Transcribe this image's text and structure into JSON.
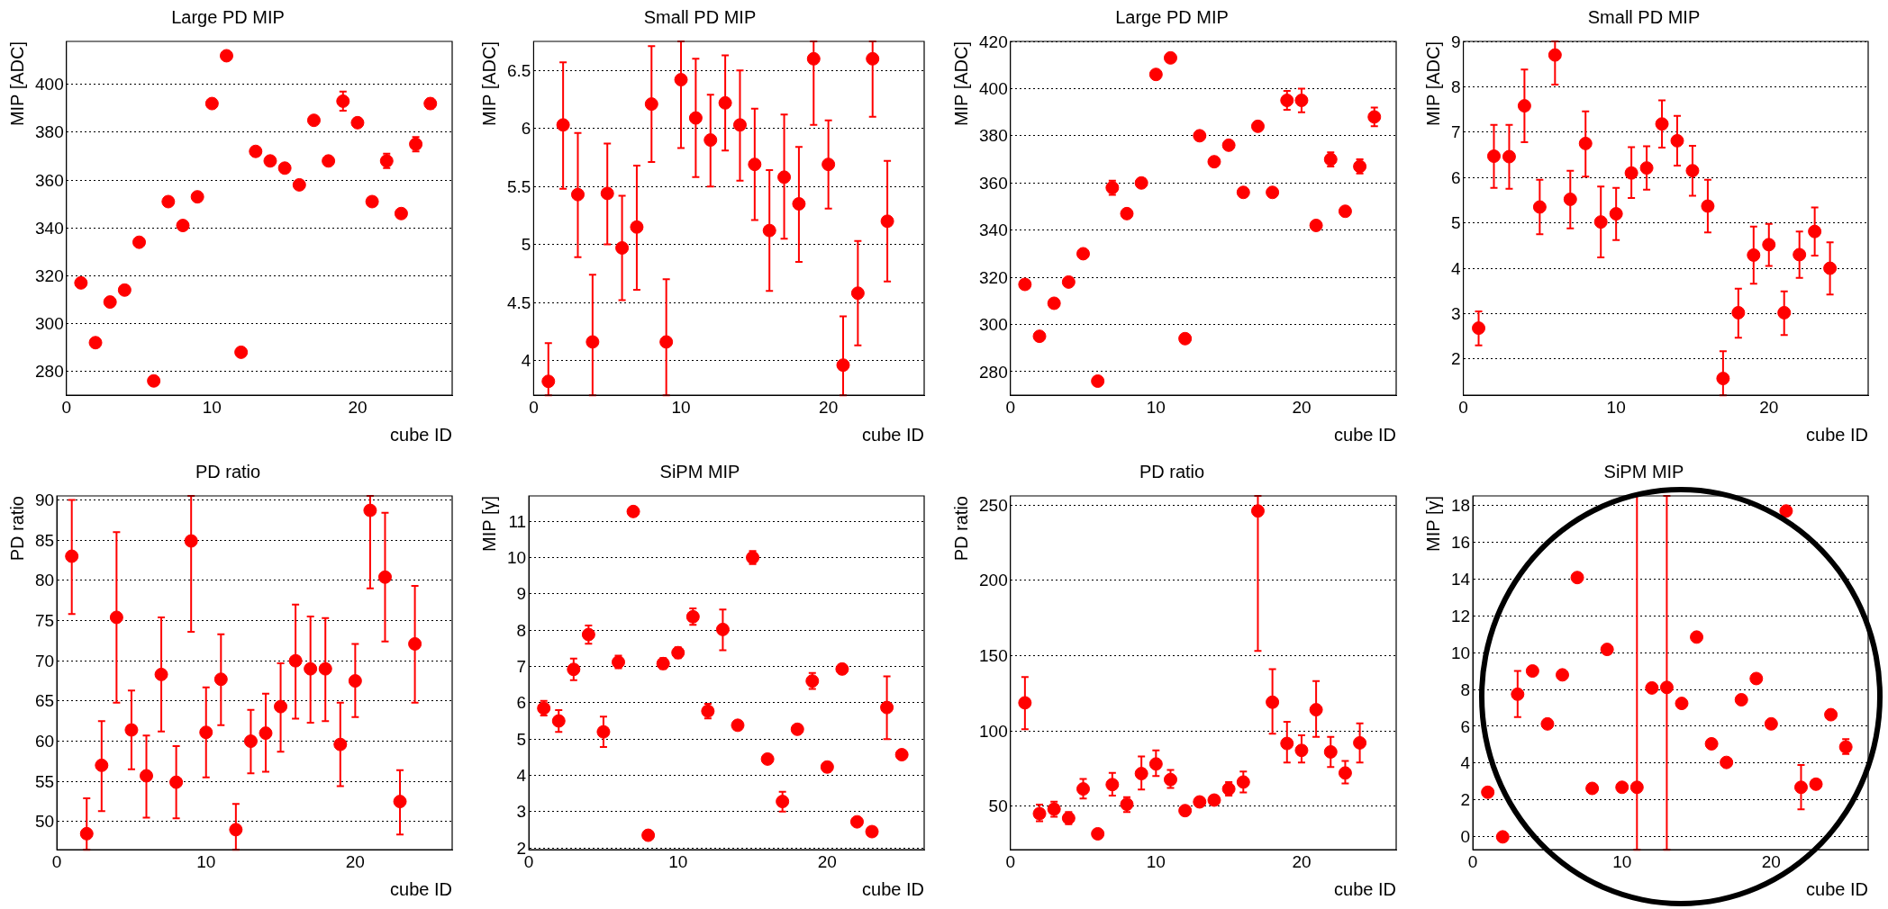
{
  "chart_data": [
    {
      "type": "scatter",
      "title": "Large PD MIP",
      "xlabel": "cube ID",
      "ylabel": "MIP [ADC]",
      "color": "#ff0000",
      "marker": "circle",
      "grid": "y",
      "xlim": [
        0,
        26.5
      ],
      "xticks": [
        0,
        10,
        20
      ],
      "ylim": [
        270,
        418
      ],
      "yticks": [
        280,
        300,
        320,
        340,
        360,
        380,
        400
      ],
      "x": [
        1,
        2,
        3,
        4,
        5,
        6,
        7,
        8,
        9,
        10,
        11,
        12,
        13,
        14,
        15,
        16,
        17,
        18,
        19,
        20,
        21,
        22,
        23,
        24,
        25
      ],
      "values": [
        317,
        292,
        309,
        314,
        334,
        276,
        351,
        341,
        353,
        392,
        412,
        288,
        372,
        368,
        365,
        358,
        385,
        368,
        393,
        384,
        351,
        368,
        346,
        375,
        392
      ],
      "errors": [
        null,
        null,
        null,
        null,
        null,
        null,
        null,
        null,
        null,
        null,
        null,
        null,
        null,
        null,
        null,
        null,
        null,
        null,
        4,
        null,
        null,
        3,
        null,
        3,
        2
      ]
    },
    {
      "type": "scatter",
      "title": "Small PD MIP",
      "xlabel": "cube ID",
      "ylabel": "MIP [ADC]",
      "color": "#ff0000",
      "marker": "circle",
      "grid": "y",
      "xlim": [
        0,
        26.5
      ],
      "xticks": [
        0,
        10,
        20
      ],
      "ylim": [
        3.7,
        6.75
      ],
      "yticks": [
        4,
        4.5,
        5,
        5.5,
        6,
        6.5
      ],
      "x": [
        1,
        2,
        3,
        4,
        5,
        6,
        7,
        8,
        9,
        10,
        11,
        12,
        13,
        14,
        15,
        16,
        17,
        18,
        19,
        20,
        21,
        22,
        23,
        24
      ],
      "values": [
        3.82,
        6.03,
        5.43,
        4.16,
        5.44,
        4.97,
        5.15,
        6.21,
        4.16,
        6.42,
        6.09,
        5.9,
        6.22,
        6.03,
        5.69,
        5.12,
        5.58,
        5.35,
        6.6,
        5.69,
        3.96,
        4.58,
        6.6,
        5.2
      ],
      "errors": [
        [
          3.7,
          4.15
        ],
        [
          5.48,
          6.57
        ],
        [
          4.89,
          5.96
        ],
        [
          3.7,
          4.74
        ],
        [
          5.0,
          5.87
        ],
        [
          4.52,
          5.42
        ],
        [
          4.61,
          5.68
        ],
        [
          5.71,
          6.71
        ],
        [
          3.7,
          4.7
        ],
        [
          5.83,
          6.75
        ],
        [
          5.58,
          6.6
        ],
        [
          5.5,
          6.29
        ],
        [
          5.81,
          6.63
        ],
        [
          5.55,
          6.5
        ],
        [
          5.21,
          6.17
        ],
        [
          4.6,
          5.64
        ],
        [
          5.05,
          6.12
        ],
        [
          4.85,
          5.84
        ],
        [
          6.03,
          6.75
        ],
        [
          5.31,
          6.07
        ],
        [
          3.7,
          4.38
        ],
        [
          4.13,
          5.03
        ],
        [
          6.1,
          6.75
        ],
        [
          4.68,
          5.72
        ]
      ]
    },
    {
      "type": "scatter",
      "title": "Large PD MIP",
      "xlabel": "cube ID",
      "ylabel": "MIP [ADC]",
      "color": "#ff0000",
      "marker": "circle",
      "grid": "y",
      "xlim": [
        0,
        26.5
      ],
      "xticks": [
        0,
        10,
        20
      ],
      "ylim": [
        270,
        420
      ],
      "yticks": [
        280,
        300,
        320,
        340,
        360,
        380,
        400,
        420
      ],
      "x": [
        1,
        2,
        3,
        4,
        5,
        6,
        7,
        8,
        9,
        10,
        11,
        12,
        13,
        14,
        15,
        16,
        17,
        18,
        19,
        20,
        21,
        22,
        23,
        24,
        25
      ],
      "values": [
        317,
        295,
        309,
        318,
        330,
        276,
        358,
        347,
        360,
        406,
        413,
        294,
        380,
        369,
        376,
        356,
        384,
        356,
        395,
        395,
        342,
        370,
        348,
        367,
        388
      ],
      "errors": [
        null,
        null,
        null,
        null,
        null,
        null,
        3,
        null,
        null,
        null,
        null,
        null,
        null,
        null,
        null,
        null,
        null,
        null,
        [
          391,
          399
        ],
        [
          390,
          400
        ],
        null,
        3,
        null,
        3,
        [
          384,
          392
        ]
      ]
    },
    {
      "type": "scatter",
      "title": "Small PD MIP",
      "xlabel": "cube ID",
      "ylabel": "MIP [ADC]",
      "color": "#ff0000",
      "marker": "circle",
      "grid": "y",
      "xlim": [
        0,
        26.5
      ],
      "xticks": [
        0,
        10,
        20
      ],
      "ylim": [
        1.2,
        9
      ],
      "yticks": [
        2,
        3,
        4,
        5,
        6,
        7,
        8,
        9
      ],
      "x": [
        1,
        2,
        3,
        4,
        5,
        6,
        7,
        8,
        9,
        10,
        11,
        12,
        13,
        14,
        15,
        16,
        17,
        18,
        19,
        20,
        21,
        22,
        23,
        24
      ],
      "values": [
        2.68,
        6.47,
        6.46,
        7.58,
        5.35,
        8.7,
        5.52,
        6.75,
        5.02,
        5.2,
        6.1,
        6.21,
        7.18,
        6.81,
        6.15,
        5.37,
        1.57,
        3.02,
        4.29,
        4.52,
        3.02,
        4.3,
        4.81,
        4.0
      ],
      "errors": [
        [
          2.3,
          3.05
        ],
        [
          5.77,
          7.16
        ],
        [
          5.75,
          7.16
        ],
        [
          6.78,
          8.38
        ],
        [
          4.75,
          5.95
        ],
        [
          8.05,
          9.0
        ],
        [
          4.88,
          6.15
        ],
        [
          6.02,
          7.46
        ],
        [
          4.24,
          5.8
        ],
        [
          4.62,
          5.77
        ],
        [
          5.55,
          6.67
        ],
        [
          5.73,
          6.69
        ],
        [
          6.66,
          7.7
        ],
        [
          6.26,
          7.36
        ],
        [
          5.6,
          6.7
        ],
        [
          4.79,
          5.95
        ],
        [
          1.2,
          2.17
        ],
        [
          2.47,
          3.55
        ],
        [
          3.66,
          4.92
        ],
        [
          4.05,
          4.98
        ],
        [
          2.53,
          3.49
        ],
        [
          3.79,
          4.81
        ],
        [
          4.28,
          5.34
        ],
        [
          3.42,
          4.57
        ]
      ]
    },
    {
      "type": "scatter",
      "title": "PD ratio",
      "xlabel": "cube ID",
      "ylabel": "PD ratio",
      "color": "#ff0000",
      "marker": "circle",
      "grid": "y",
      "xlim": [
        0,
        26.5
      ],
      "xticks": [
        0,
        10,
        20
      ],
      "ylim": [
        46.5,
        90.5
      ],
      "yticks": [
        50,
        55,
        60,
        65,
        70,
        75,
        80,
        85,
        90
      ],
      "x": [
        1,
        2,
        3,
        4,
        5,
        6,
        7,
        8,
        9,
        10,
        11,
        12,
        13,
        14,
        15,
        16,
        17,
        18,
        19,
        20,
        21,
        22,
        23,
        24
      ],
      "values": [
        83,
        48.5,
        57,
        75.4,
        61.4,
        55.7,
        68.3,
        54.9,
        84.9,
        61.1,
        67.7,
        49,
        60,
        61,
        64.3,
        70,
        69,
        69,
        59.6,
        67.5,
        88.7,
        80.4,
        52.5,
        72.1
      ],
      "errors": [
        [
          75.8,
          90
        ],
        [
          46.5,
          52.9
        ],
        [
          51.3,
          62.5
        ],
        [
          64.8,
          86
        ],
        [
          56.5,
          66.3
        ],
        [
          50.5,
          60.7
        ],
        [
          61.2,
          75.4
        ],
        [
          50.4,
          59.4
        ],
        [
          73.6,
          90.5
        ],
        [
          55.5,
          66.7
        ],
        [
          62,
          73.3
        ],
        [
          46.5,
          52.2
        ],
        [
          56,
          63.9
        ],
        [
          56.2,
          65.9
        ],
        [
          58.7,
          69.7
        ],
        [
          62.8,
          77
        ],
        [
          62.3,
          75.5
        ],
        [
          62.5,
          75.3
        ],
        [
          54.4,
          64.8
        ],
        [
          63,
          72.1
        ],
        [
          79,
          90.5
        ],
        [
          72.4,
          88.4
        ],
        [
          48.4,
          56.4
        ],
        [
          64.8,
          79.3
        ]
      ]
    },
    {
      "type": "scatter",
      "title": "SiPM MIP",
      "xlabel": "cube ID",
      "ylabel": "MIP [γ]",
      "color": "#ff0000",
      "marker": "circle",
      "grid": "y",
      "xlim": [
        0,
        26.5
      ],
      "xticks": [
        0,
        10,
        20
      ],
      "ylim": [
        1.95,
        11.7
      ],
      "yticks": [
        2,
        3,
        4,
        5,
        6,
        7,
        8,
        9,
        10,
        11
      ],
      "x": [
        1,
        2,
        3,
        4,
        5,
        6,
        7,
        8,
        9,
        10,
        11,
        12,
        13,
        14,
        15,
        16,
        17,
        18,
        19,
        20,
        21,
        22,
        23,
        24,
        25
      ],
      "values": [
        5.85,
        5.5,
        6.92,
        7.88,
        5.2,
        7.12,
        11.27,
        2.35,
        7.08,
        7.38,
        8.37,
        5.77,
        8.02,
        5.38,
        10,
        4.45,
        3.28,
        5.27,
        6.6,
        4.23,
        6.93,
        2.72,
        2.45,
        5.87,
        4.57
      ],
      "errors": [
        [
          5.65,
          6.05
        ],
        [
          5.2,
          5.8
        ],
        [
          6.62,
          7.22
        ],
        [
          7.63,
          8.13
        ],
        [
          4.78,
          5.62
        ],
        [
          6.95,
          7.3
        ],
        null,
        null,
        [
          6.93,
          7.23
        ],
        [
          7.23,
          7.53
        ],
        [
          8.15,
          8.6
        ],
        [
          5.57,
          5.97
        ],
        [
          7.45,
          8.57
        ],
        null,
        [
          9.82,
          10.18
        ],
        null,
        [
          3.0,
          3.55
        ],
        null,
        [
          6.38,
          6.82
        ],
        [
          4.1,
          4.36
        ],
        [
          6.8,
          7.06
        ],
        null,
        null,
        [
          5.0,
          6.73
        ],
        null
      ]
    },
    {
      "type": "scatter",
      "title": "PD ratio",
      "xlabel": "cube ID",
      "ylabel": "PD ratio",
      "color": "#ff0000",
      "marker": "circle",
      "grid": "y",
      "xlim": [
        0,
        26.5
      ],
      "xticks": [
        0,
        10,
        20
      ],
      "ylim": [
        21,
        256
      ],
      "yticks": [
        50,
        100,
        150,
        200,
        250
      ],
      "x": [
        1,
        2,
        3,
        4,
        5,
        6,
        7,
        8,
        9,
        10,
        11,
        12,
        13,
        14,
        15,
        16,
        17,
        18,
        19,
        20,
        21,
        22,
        23,
        24
      ],
      "values": [
        118.6,
        45,
        48,
        42,
        61.4,
        31.6,
        64.3,
        51.2,
        71.6,
        78,
        67.6,
        47,
        52.8,
        54,
        61.4,
        66,
        246,
        119,
        91.6,
        87,
        114,
        86,
        72,
        92
      ],
      "errors": [
        [
          101,
          135.7
        ],
        [
          40,
          51
        ],
        [
          43,
          53
        ],
        [
          38,
          46
        ],
        [
          55,
          68
        ],
        null,
        [
          57,
          72
        ],
        [
          46,
          56
        ],
        [
          61,
          83
        ],
        [
          70,
          87
        ],
        [
          62,
          74
        ],
        null,
        null,
        null,
        [
          57,
          66
        ],
        [
          59,
          73
        ],
        [
          153,
          256
        ],
        [
          98,
          141
        ],
        [
          79,
          106
        ],
        [
          79,
          97
        ],
        [
          96,
          133
        ],
        [
          76,
          96
        ],
        [
          65,
          80
        ],
        [
          79,
          105
        ]
      ]
    },
    {
      "type": "scatter",
      "title": "SiPM MIP",
      "xlabel": "cube ID",
      "ylabel": "MIP [γ]",
      "color": "#ff0000",
      "marker": "circle",
      "grid": "y",
      "xlim": [
        0,
        26.5
      ],
      "xticks": [
        0,
        10,
        20
      ],
      "ylim": [
        -0.7,
        18.5
      ],
      "yticks": [
        0,
        2,
        4,
        6,
        8,
        10,
        12,
        14,
        16,
        18
      ],
      "x": [
        1,
        2,
        3,
        4,
        5,
        6,
        7,
        8,
        9,
        10,
        11,
        12,
        13,
        14,
        15,
        16,
        17,
        18,
        19,
        20,
        21,
        22,
        23,
        24,
        25
      ],
      "values": [
        2.42,
        0,
        7.74,
        9.0,
        6.13,
        8.79,
        14.07,
        2.63,
        10.17,
        2.69,
        2.69,
        8.08,
        8.11,
        7.24,
        10.84,
        5.05,
        4.04,
        7.44,
        8.59,
        6.13,
        17.68,
        2.69,
        2.86,
        6.63,
        4.88
      ],
      "errors": [
        null,
        null,
        [
          6.5,
          9.0
        ],
        null,
        null,
        null,
        null,
        null,
        null,
        null,
        [
          -0.7,
          18.5
        ],
        null,
        [
          -0.7,
          18.5
        ],
        null,
        null,
        null,
        null,
        null,
        null,
        null,
        null,
        [
          1.5,
          3.9
        ],
        null,
        null,
        [
          4.5,
          5.3
        ]
      ]
    }
  ]
}
